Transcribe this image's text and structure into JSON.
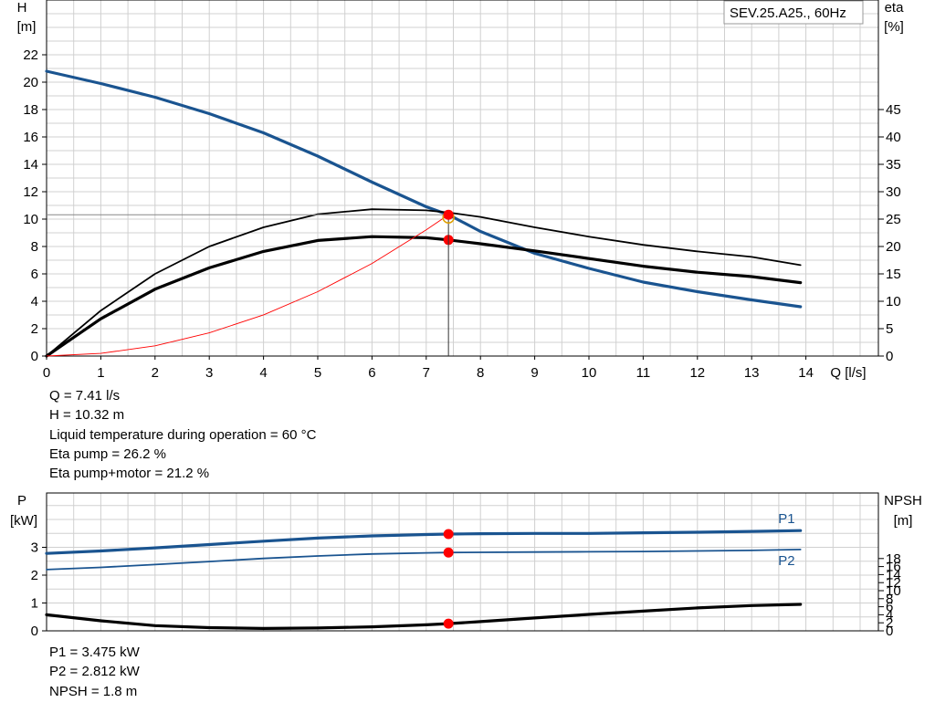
{
  "pump_label": "SEV.25.A25., 60Hz",
  "colors": {
    "blue": "#1a5490",
    "red": "#ff0000",
    "grid": "#d0d0d0",
    "black": "#000000"
  },
  "top_info": [
    "Q = 7.41 l/s",
    "H = 10.32 m",
    "Liquid temperature during operation = 60 °C",
    "Eta pump = 26.2 %",
    "Eta pump+motor = 21.2 %"
  ],
  "bottom_info": [
    "P1 = 3.475 kW",
    "P2 = 2.812 kW",
    "NPSH = 1.8 m"
  ],
  "chart_data": [
    {
      "type": "line",
      "title": "SEV.25.A25., 60Hz",
      "xlabel": "Q [l/s]",
      "ylabel_left": "H\n[m]",
      "ylabel_right": "eta\n[%]",
      "xlim": [
        0,
        15
      ],
      "ylim_left": [
        0,
        24
      ],
      "ylim_right": [
        0,
        60
      ],
      "x_ticks": [
        "0",
        "1",
        "2",
        "3",
        "4",
        "5",
        "6",
        "7",
        "8",
        "9",
        "10",
        "11",
        "12",
        "13",
        "14"
      ],
      "y_left_ticks": [
        "0",
        "2",
        "4",
        "6",
        "8",
        "10",
        "12",
        "14",
        "16",
        "18",
        "20",
        "22"
      ],
      "y_right_ticks": [
        "0",
        "5",
        "10",
        "15",
        "20",
        "25",
        "30",
        "35",
        "40",
        "45"
      ],
      "grid": true,
      "operating_point": {
        "Q": 7.41,
        "H": 10.32,
        "eta_pump": 26.2,
        "eta_pump_motor": 21.2
      },
      "series": [
        {
          "axis": "left",
          "color": "#1a5490",
          "width": 3.2,
          "x": [
            0,
            1,
            2,
            3,
            4,
            5,
            6,
            7,
            7.41,
            8,
            9,
            10,
            11,
            12,
            13,
            13.9
          ],
          "y": [
            20.8,
            19.9,
            18.9,
            17.7,
            16.3,
            14.6,
            12.7,
            10.9,
            10.32,
            9.1,
            7.5,
            6.4,
            5.4,
            4.7,
            4.1,
            3.6
          ]
        },
        {
          "axis": "right",
          "color": "#000000",
          "width": 1.8,
          "x": [
            0,
            1,
            2,
            3,
            4,
            5,
            6,
            7,
            7.41,
            8,
            9,
            10,
            11,
            12,
            13,
            13.9
          ],
          "y": [
            0,
            8.3,
            15,
            20,
            23.5,
            25.9,
            26.8,
            26.6,
            26.2,
            25.4,
            23.5,
            21.8,
            20.3,
            19.1,
            18.1,
            16.6
          ]
        },
        {
          "axis": "right",
          "color": "#000000",
          "width": 3.2,
          "x": [
            0,
            1,
            2,
            3,
            4,
            5,
            6,
            7,
            7.41,
            8,
            9,
            10,
            11,
            12,
            13,
            13.9
          ],
          "y": [
            0,
            6.8,
            12.2,
            16.1,
            19.1,
            21.1,
            21.8,
            21.6,
            21.2,
            20.5,
            19.2,
            17.8,
            16.4,
            15.3,
            14.5,
            13.4
          ]
        },
        {
          "axis": "left",
          "color": "#ff0000",
          "width": 0.9,
          "x": [
            0,
            1,
            2,
            3,
            4,
            5,
            6,
            7,
            7.41
          ],
          "y": [
            0,
            0.19,
            0.75,
            1.69,
            3.01,
            4.7,
            6.76,
            9.21,
            10.32
          ]
        }
      ],
      "markers": [
        {
          "axis": "left",
          "x": 7.41,
          "y": 10.32,
          "color": "#ff0000"
        },
        {
          "axis": "right",
          "x": 7.41,
          "y": 21.2,
          "color": "#ff0000"
        }
      ]
    },
    {
      "type": "line",
      "xlim": [
        0,
        15
      ],
      "ylabel_left": "P\n[kW]",
      "ylabel_right": "NPSH\n[m]",
      "ylim_left": [
        0,
        4
      ],
      "ylim_right": [
        0,
        24
      ],
      "y_left_ticks": [
        "0",
        "1",
        "2",
        "3"
      ],
      "y_right_ticks": [
        "0",
        "2",
        "4",
        "6",
        "8",
        "10",
        "12",
        "14",
        "16",
        "18"
      ],
      "grid": true,
      "series": [
        {
          "name": "P1",
          "axis": "left",
          "color": "#1a5490",
          "width": 3.2,
          "x": [
            0,
            1,
            2,
            3,
            4,
            5,
            6,
            7,
            7.41,
            8,
            9,
            10,
            11,
            12,
            13,
            13.9
          ],
          "y": [
            2.78,
            2.87,
            2.98,
            3.1,
            3.22,
            3.33,
            3.41,
            3.46,
            3.475,
            3.49,
            3.5,
            3.5,
            3.52,
            3.54,
            3.57,
            3.6
          ]
        },
        {
          "name": "P2",
          "axis": "left",
          "color": "#1a5490",
          "width": 1.8,
          "x": [
            0,
            1,
            2,
            3,
            4,
            5,
            6,
            7,
            7.41,
            8,
            9,
            10,
            11,
            12,
            13,
            13.9
          ],
          "y": [
            2.2,
            2.28,
            2.38,
            2.49,
            2.6,
            2.69,
            2.76,
            2.8,
            2.812,
            2.82,
            2.83,
            2.84,
            2.85,
            2.87,
            2.89,
            2.92
          ]
        },
        {
          "axis": "right",
          "color": "#000000",
          "width": 3.2,
          "x": [
            0,
            1,
            2,
            3,
            4,
            5,
            6,
            7,
            7.41,
            8,
            9,
            10,
            11,
            12,
            13,
            13.9
          ],
          "y": [
            4.0,
            2.5,
            1.3,
            0.8,
            0.6,
            0.7,
            1.0,
            1.5,
            1.8,
            2.3,
            3.2,
            4.1,
            4.9,
            5.7,
            6.3,
            6.6
          ]
        }
      ],
      "markers": [
        {
          "axis": "left",
          "x": 7.41,
          "y": 3.475,
          "color": "#ff0000"
        },
        {
          "axis": "left",
          "x": 7.41,
          "y": 2.812,
          "color": "#ff0000"
        },
        {
          "axis": "right",
          "x": 7.41,
          "y": 1.8,
          "color": "#ff0000"
        }
      ]
    }
  ]
}
